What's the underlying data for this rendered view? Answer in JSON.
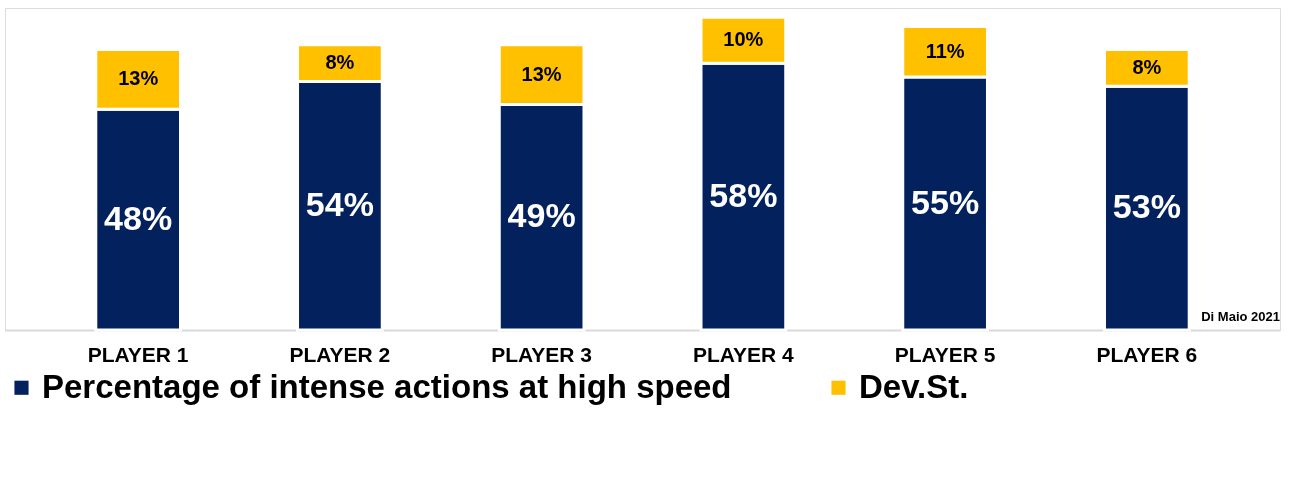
{
  "chart_data": {
    "type": "bar",
    "stacked": true,
    "categories": [
      "PLAYER 1",
      "PLAYER 2",
      "PLAYER 3",
      "PLAYER 4",
      "PLAYER 5",
      "PLAYER 6"
    ],
    "series": [
      {
        "name": "Percentage of intense actions at high speed",
        "color": "#03215d",
        "values": [
          48,
          54,
          49,
          58,
          55,
          53
        ],
        "value_labels": [
          "48%",
          "54%",
          "49%",
          "58%",
          "55%",
          "53%"
        ]
      },
      {
        "name": "Dev.St.",
        "color": "#ffc000",
        "values": [
          13,
          8,
          13,
          10,
          11,
          8
        ],
        "value_labels": [
          "13%",
          "8%",
          "13%",
          "10%",
          "11%",
          "8%"
        ]
      }
    ],
    "legend": "bottom",
    "annotations": [
      "Di Maio 2021"
    ]
  }
}
